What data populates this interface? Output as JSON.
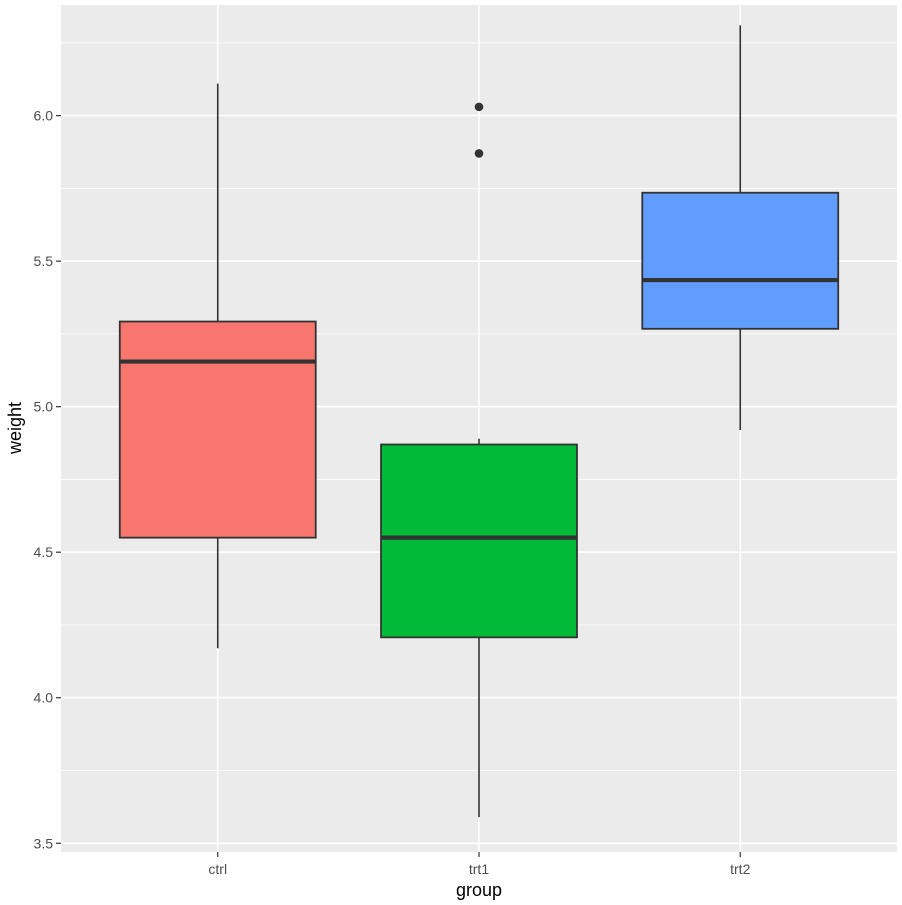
{
  "chart_data": {
    "type": "boxplot",
    "xlabel": "group",
    "ylabel": "weight",
    "ylim": [
      3.47,
      6.38
    ],
    "y_ticks": [
      3.5,
      4.0,
      4.5,
      5.0,
      5.5,
      6.0
    ],
    "y_tick_labels": [
      "3.5",
      "4.0",
      "4.5",
      "5.0",
      "5.5",
      "6.0"
    ],
    "categories": [
      "ctrl",
      "trt1",
      "trt2"
    ],
    "grid": true,
    "legend": "none",
    "series": [
      {
        "category": "ctrl",
        "lower_whisker": 4.17,
        "q1": 4.55,
        "median": 5.155,
        "q3": 5.2925,
        "upper_whisker": 6.11,
        "outliers": [],
        "color": "#F8766D"
      },
      {
        "category": "trt1",
        "lower_whisker": 3.59,
        "q1": 4.2075,
        "median": 4.55,
        "q3": 4.87,
        "upper_whisker": 4.89,
        "outliers": [
          5.87,
          6.03
        ],
        "color": "#00BA38"
      },
      {
        "category": "trt2",
        "lower_whisker": 4.92,
        "q1": 5.2675,
        "median": 5.435,
        "q3": 5.735,
        "upper_whisker": 6.31,
        "outliers": [],
        "color": "#619CFF"
      }
    ],
    "colors": {
      "panel_background": "#EBEBEB",
      "grid": "#FFFFFF",
      "box_outline": "#333333"
    }
  }
}
